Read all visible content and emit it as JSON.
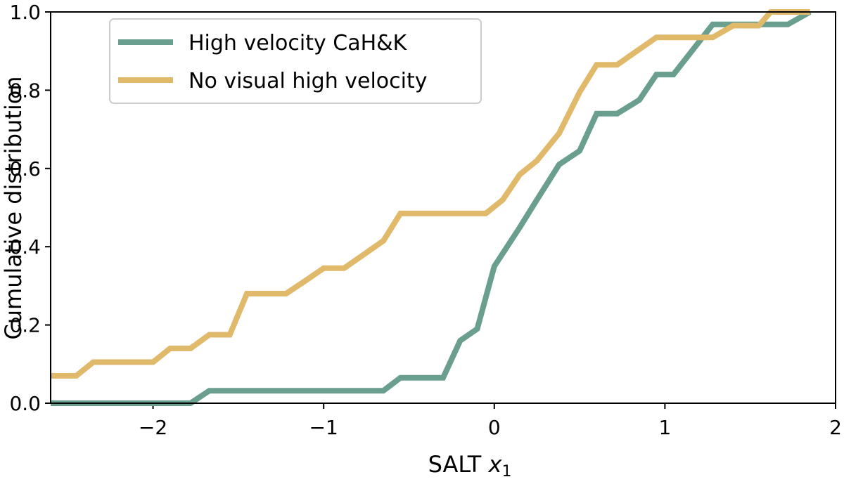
{
  "chart_data": {
    "type": "line",
    "xlabel_text": "SALT ",
    "xlabel_math": "x",
    "xlabel_sub": "1",
    "ylabel": "Cumulative distribution",
    "xlim": [
      -2.6,
      2.0
    ],
    "ylim": [
      0.0,
      1.0
    ],
    "x_ticks": [
      -2,
      -1,
      0,
      1,
      2
    ],
    "x_tick_labels": [
      "−2",
      "−1",
      "0",
      "1",
      "2"
    ],
    "y_ticks": [
      0.0,
      0.2,
      0.4,
      0.6,
      0.8,
      1.0
    ],
    "y_tick_labels": [
      "0.0",
      "0.2",
      "0.4",
      "0.6",
      "0.8",
      "1.0"
    ],
    "grid": false,
    "legend_position": "top-left",
    "series": [
      {
        "name": "High velocity CaH&K",
        "color": "#6a9e8f",
        "x": [
          -2.6,
          -1.78,
          -1.67,
          -0.65,
          -0.55,
          -0.3,
          -0.2,
          -0.1,
          0.0,
          0.15,
          0.25,
          0.38,
          0.5,
          0.6,
          0.72,
          0.85,
          0.95,
          1.05,
          1.28,
          1.55,
          1.72,
          1.85
        ],
        "y": [
          0.0,
          0.0,
          0.032,
          0.032,
          0.065,
          0.065,
          0.16,
          0.19,
          0.35,
          0.45,
          0.52,
          0.61,
          0.645,
          0.74,
          0.74,
          0.775,
          0.84,
          0.84,
          0.968,
          0.968,
          0.968,
          1.0
        ]
      },
      {
        "name": "No visual high velocity",
        "color": "#e0b96b",
        "x": [
          -2.6,
          -2.45,
          -2.35,
          -2.0,
          -1.9,
          -1.78,
          -1.67,
          -1.55,
          -1.45,
          -1.22,
          -1.1,
          -1.0,
          -0.88,
          -0.65,
          -0.55,
          -0.05,
          0.05,
          0.15,
          0.25,
          0.38,
          0.5,
          0.6,
          0.72,
          0.95,
          1.28,
          1.4,
          1.55,
          1.62,
          1.85
        ],
        "y": [
          0.07,
          0.07,
          0.105,
          0.105,
          0.14,
          0.14,
          0.175,
          0.175,
          0.28,
          0.28,
          0.315,
          0.345,
          0.345,
          0.415,
          0.485,
          0.485,
          0.52,
          0.585,
          0.62,
          0.69,
          0.795,
          0.865,
          0.865,
          0.935,
          0.935,
          0.965,
          0.965,
          1.0,
          1.0
        ]
      }
    ]
  }
}
